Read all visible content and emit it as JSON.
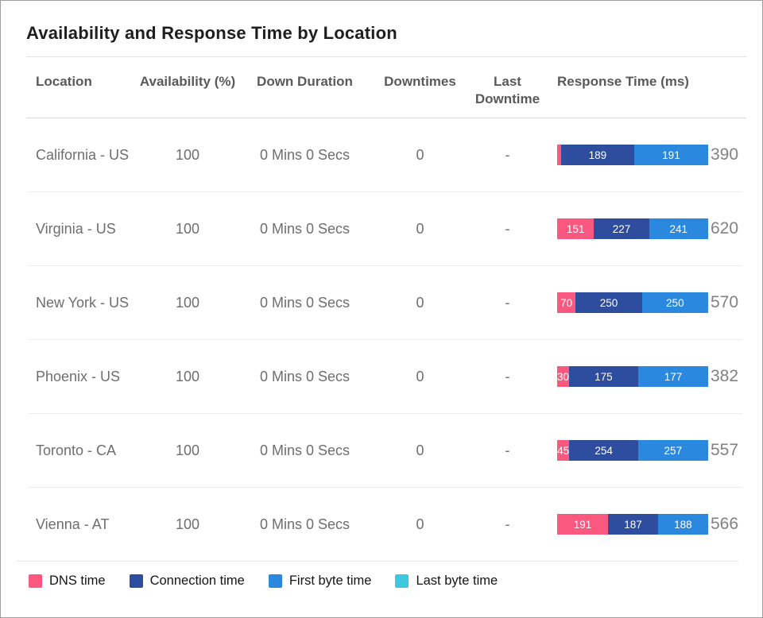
{
  "panel": {
    "title": "Availability and Response Time by Location"
  },
  "table": {
    "columns": [
      "Location",
      "Availability (%)",
      "Down Duration",
      "Downtimes",
      "Last Downtime",
      "Response Time (ms)"
    ],
    "rows": [
      {
        "location": "California - US",
        "availability": "100",
        "down_duration": "0 Mins 0 Secs",
        "downtimes": "0",
        "last_downtime": "-",
        "response_total": 390,
        "segments": [
          {
            "name": "DNS time",
            "value": 10,
            "label": ""
          },
          {
            "name": "Connection time",
            "value": 189,
            "label": "189"
          },
          {
            "name": "First byte time",
            "value": 191,
            "label": "191"
          },
          {
            "name": "Last byte time",
            "value": 0,
            "label": ""
          }
        ]
      },
      {
        "location": "Virginia - US",
        "availability": "100",
        "down_duration": "0 Mins 0 Secs",
        "downtimes": "0",
        "last_downtime": "-",
        "response_total": 620,
        "segments": [
          {
            "name": "DNS time",
            "value": 151,
            "label": "151"
          },
          {
            "name": "Connection time",
            "value": 227,
            "label": "227"
          },
          {
            "name": "First byte time",
            "value": 241,
            "label": "241"
          },
          {
            "name": "Last byte time",
            "value": 1,
            "label": ""
          }
        ]
      },
      {
        "location": "New York - US",
        "availability": "100",
        "down_duration": "0 Mins 0 Secs",
        "downtimes": "0",
        "last_downtime": "-",
        "response_total": 570,
        "segments": [
          {
            "name": "DNS time",
            "value": 70,
            "label": "70"
          },
          {
            "name": "Connection time",
            "value": 250,
            "label": "250"
          },
          {
            "name": "First byte time",
            "value": 250,
            "label": "250"
          },
          {
            "name": "Last byte time",
            "value": 0,
            "label": ""
          }
        ]
      },
      {
        "location": "Phoenix - US",
        "availability": "100",
        "down_duration": "0 Mins 0 Secs",
        "downtimes": "0",
        "last_downtime": "-",
        "response_total": 382,
        "segments": [
          {
            "name": "DNS time",
            "value": 30,
            "label": "30"
          },
          {
            "name": "Connection time",
            "value": 175,
            "label": "175"
          },
          {
            "name": "First byte time",
            "value": 177,
            "label": "177"
          },
          {
            "name": "Last byte time",
            "value": 0,
            "label": ""
          }
        ]
      },
      {
        "location": "Toronto - CA",
        "availability": "100",
        "down_duration": "0 Mins 0 Secs",
        "downtimes": "0",
        "last_downtime": "-",
        "response_total": 557,
        "segments": [
          {
            "name": "DNS time",
            "value": 45,
            "label": "45"
          },
          {
            "name": "Connection time",
            "value": 254,
            "label": "254"
          },
          {
            "name": "First byte time",
            "value": 257,
            "label": "257"
          },
          {
            "name": "Last byte time",
            "value": 1,
            "label": ""
          }
        ]
      },
      {
        "location": "Vienna - AT",
        "availability": "100",
        "down_duration": "0 Mins 0 Secs",
        "downtimes": "0",
        "last_downtime": "-",
        "response_total": 566,
        "segments": [
          {
            "name": "DNS time",
            "value": 191,
            "label": "191"
          },
          {
            "name": "Connection time",
            "value": 187,
            "label": "187"
          },
          {
            "name": "First byte time",
            "value": 188,
            "label": "188"
          },
          {
            "name": "Last byte time",
            "value": 0,
            "label": ""
          }
        ]
      }
    ]
  },
  "legend": {
    "items": [
      {
        "label": "DNS time",
        "color": "#fb5880"
      },
      {
        "label": "Connection time",
        "color": "#2e4d9e"
      },
      {
        "label": "First byte time",
        "color": "#2b88df"
      },
      {
        "label": "Last byte time",
        "color": "#3fc7e0"
      }
    ]
  },
  "colors": {
    "series": [
      "#fb5880",
      "#2e4d9e",
      "#2b88df",
      "#3fc7e0"
    ],
    "title_text": "#1e1e1e",
    "header_text": "#5a5a5a",
    "row_text": "#6e6e6e",
    "total_text": "#818181"
  },
  "chart_data": {
    "type": "bar",
    "orientation": "horizontal",
    "stacked": true,
    "normalized": true,
    "title": "Availability and Response Time by Location",
    "categories": [
      "California - US",
      "Virginia - US",
      "New York - US",
      "Phoenix - US",
      "Toronto - CA",
      "Vienna - AT"
    ],
    "series": [
      {
        "name": "DNS time",
        "values": [
          10,
          151,
          70,
          30,
          45,
          191
        ]
      },
      {
        "name": "Connection time",
        "values": [
          189,
          227,
          250,
          175,
          254,
          187
        ]
      },
      {
        "name": "First byte time",
        "values": [
          191,
          241,
          250,
          177,
          257,
          188
        ]
      },
      {
        "name": "Last byte time",
        "values": [
          0,
          1,
          0,
          0,
          1,
          0
        ]
      }
    ],
    "totals_ms": [
      390,
      620,
      570,
      382,
      557,
      566
    ],
    "xlabel": "Response Time (ms)",
    "legend_position": "bottom",
    "grid": false
  }
}
